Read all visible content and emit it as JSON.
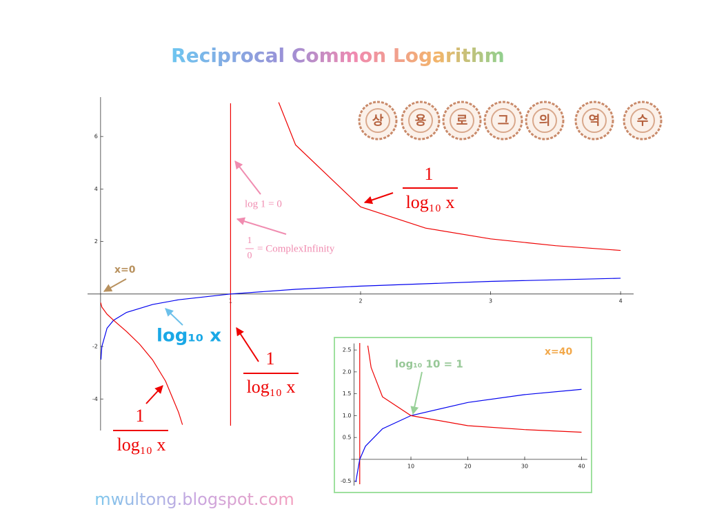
{
  "title": "Reciprocal Common Logarithm",
  "seal": [
    "상",
    "용",
    "로",
    "그",
    "의",
    "역",
    "수"
  ],
  "footer": "mwultong.blogspot.com",
  "chart_data": [
    {
      "type": "line",
      "xlim": [
        -0.1,
        4.1
      ],
      "ylim": [
        -5.2,
        7.5
      ],
      "xticks": [
        1,
        2,
        3,
        4
      ],
      "yticks": [
        -4,
        -2,
        2,
        4,
        6
      ],
      "asymptote_x": 1,
      "series": [
        {
          "color": "#0000ee",
          "x": [
            0.003,
            0.01,
            0.05,
            0.1,
            0.2,
            0.4,
            0.6,
            1,
            1.5,
            2,
            3,
            4
          ],
          "values": [
            -2.5,
            -2,
            -1.3,
            -1,
            -0.7,
            -0.4,
            -0.22,
            0,
            0.18,
            0.3,
            0.48,
            0.6
          ]
        },
        {
          "color": "#ee0000",
          "x": [
            0.001,
            0.01,
            0.05,
            0.1,
            0.2,
            0.3,
            0.4,
            0.5,
            0.6,
            0.63,
            null,
            1.37,
            1.5,
            2,
            2.5,
            3,
            3.5,
            4
          ],
          "values": [
            -0.33,
            -0.5,
            -0.77,
            -1,
            -1.43,
            -1.91,
            -2.51,
            -3.32,
            -4.51,
            -4.98,
            null,
            7.3,
            5.68,
            3.32,
            2.51,
            2.1,
            1.84,
            1.66
          ]
        }
      ],
      "annotations": [
        "log 1 = 0",
        "x=0",
        "log₁₀ x"
      ],
      "complex_infinity": {
        "numerator": "1",
        "denominator": "0",
        "text": "= ComplexInfinity"
      },
      "fractions": [
        {
          "numerator": "1",
          "denominator": "log₁₀ x"
        },
        {
          "numerator": "1",
          "denominator": "log₁₀ x"
        },
        {
          "numerator": "1",
          "denominator": "log₁₀ x"
        }
      ]
    },
    {
      "type": "line",
      "xlim": [
        -0.5,
        41
      ],
      "ylim": [
        -0.6,
        2.65
      ],
      "xticks": [
        10,
        20,
        30,
        40
      ],
      "yticks": [
        -0.5,
        0.5,
        {
          "value": 1,
          "label": "1.0"
        },
        1.5,
        {
          "value": 2,
          "label": "2.0"
        },
        2.5
      ],
      "asymptote_x": 1,
      "series": [
        {
          "color": "#0000ee",
          "x": [
            0.3,
            1,
            2,
            5,
            10,
            20,
            30,
            40
          ],
          "values": [
            -0.52,
            0,
            0.3,
            0.7,
            1,
            1.3,
            1.48,
            1.6
          ]
        },
        {
          "color": "#ee0000",
          "x": [
            2.42,
            3,
            5,
            10,
            20,
            30,
            40
          ],
          "values": [
            2.6,
            2.1,
            1.43,
            1,
            0.77,
            0.68,
            0.62
          ]
        }
      ],
      "annotations": [
        "log₁₀ 10 = 1",
        "x=40"
      ]
    }
  ]
}
